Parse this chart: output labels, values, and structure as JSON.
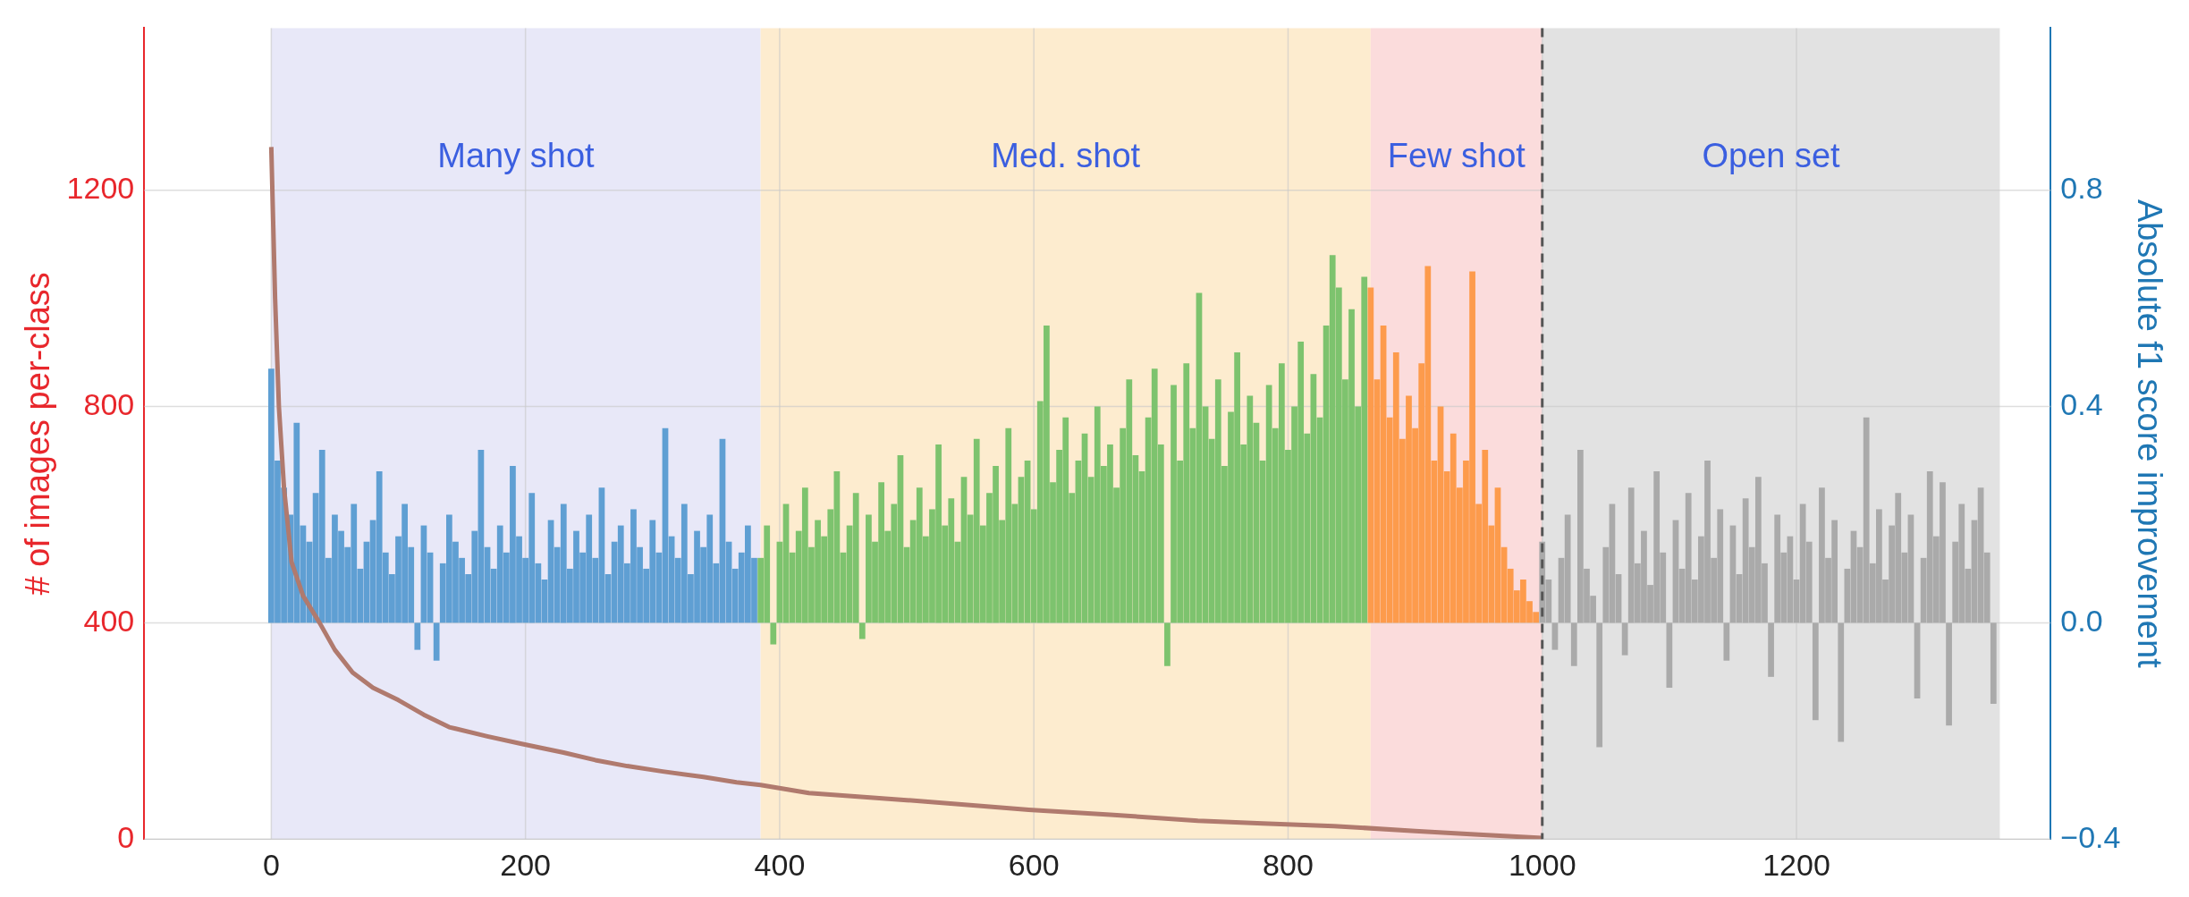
{
  "chart_data": {
    "type": "bar",
    "xlim": [
      -100,
      1400
    ],
    "xticks": [
      0,
      200,
      400,
      600,
      800,
      1000,
      1200
    ],
    "ylim": [
      0,
      1500
    ],
    "yticks": [
      0,
      400,
      800,
      1200
    ],
    "y2lim": [
      -0.4,
      1.1
    ],
    "y2ticks": [
      {
        "value": -0.4,
        "label": "−0.4"
      },
      {
        "value": 0,
        "label": "0.0"
      },
      0.4,
      0.8
    ],
    "ylabel": "# of images per-class",
    "y2label": "Absolute f1 score improvement",
    "grid": true,
    "legend": false,
    "bands": [
      {
        "axis": "x",
        "from": 0,
        "to": 385,
        "label": "Many shot",
        "color": "#e8e8f8"
      },
      {
        "axis": "x",
        "from": 385,
        "to": 865,
        "label": "Med. shot",
        "color": "#fdeccf"
      },
      {
        "axis": "x",
        "from": 865,
        "to": 1000,
        "label": "Few shot",
        "color": "#fbdcdc"
      },
      {
        "axis": "x",
        "from": 1000,
        "to": 1360,
        "label": "Open set",
        "color": "#e2e2e2"
      }
    ],
    "ref_lines": [
      {
        "axis": "x",
        "value": 1000,
        "color": "#555555",
        "line_style": "dashed"
      }
    ],
    "series": [
      {
        "axis": "y2",
        "color": "#5f9fd3",
        "x": [
          0,
          5,
          10,
          15,
          20,
          25,
          30,
          35,
          40,
          45,
          50,
          55,
          60,
          65,
          70,
          75,
          80,
          85,
          90,
          95,
          100,
          105,
          110,
          115,
          120,
          125,
          130,
          135,
          140,
          145,
          150,
          155,
          160,
          165,
          170,
          175,
          180,
          185,
          190,
          195,
          200,
          205,
          210,
          215,
          220,
          225,
          230,
          235,
          240,
          245,
          250,
          255,
          260,
          265,
          270,
          275,
          280,
          285,
          290,
          295,
          300,
          305,
          310,
          315,
          320,
          325,
          330,
          335,
          340,
          345,
          350,
          355,
          360,
          365,
          370,
          375,
          380
        ],
        "values": [
          0.47,
          0.3,
          0.25,
          0.2,
          0.37,
          0.18,
          0.15,
          0.24,
          0.32,
          0.12,
          0.2,
          0.17,
          0.14,
          0.22,
          0.1,
          0.15,
          0.19,
          0.28,
          0.13,
          0.09,
          0.16,
          0.22,
          0.14,
          -0.05,
          0.18,
          0.13,
          -0.07,
          0.11,
          0.2,
          0.15,
          0.12,
          0.09,
          0.17,
          0.32,
          0.14,
          0.1,
          0.18,
          0.13,
          0.29,
          0.16,
          0.12,
          0.24,
          0.11,
          0.08,
          0.19,
          0.14,
          0.22,
          0.1,
          0.17,
          0.13,
          0.2,
          0.12,
          0.25,
          0.09,
          0.15,
          0.18,
          0.11,
          0.21,
          0.14,
          0.1,
          0.19,
          0.13,
          0.36,
          0.16,
          0.12,
          0.22,
          0.09,
          0.17,
          0.14,
          0.2,
          0.11,
          0.34,
          0.15,
          0.1,
          0.13,
          0.18,
          0.12
        ]
      },
      {
        "axis": "y2",
        "color": "#7dc36e",
        "x": [
          385,
          390,
          395,
          400,
          405,
          410,
          415,
          420,
          425,
          430,
          435,
          440,
          445,
          450,
          455,
          460,
          465,
          470,
          475,
          480,
          485,
          490,
          495,
          500,
          505,
          510,
          515,
          520,
          525,
          530,
          535,
          540,
          545,
          550,
          555,
          560,
          565,
          570,
          575,
          580,
          585,
          590,
          595,
          600,
          605,
          610,
          615,
          620,
          625,
          630,
          635,
          640,
          645,
          650,
          655,
          660,
          665,
          670,
          675,
          680,
          685,
          690,
          695,
          700,
          705,
          710,
          715,
          720,
          725,
          730,
          735,
          740,
          745,
          750,
          755,
          760,
          765,
          770,
          775,
          780,
          785,
          790,
          795,
          800,
          805,
          810,
          815,
          820,
          825,
          830,
          835,
          840,
          845,
          850,
          855,
          860
        ],
        "values": [
          0.12,
          0.18,
          -0.04,
          0.15,
          0.22,
          0.13,
          0.17,
          0.25,
          0.14,
          0.19,
          0.16,
          0.21,
          0.28,
          0.13,
          0.18,
          0.24,
          -0.03,
          0.2,
          0.15,
          0.26,
          0.17,
          0.22,
          0.31,
          0.14,
          0.19,
          0.25,
          0.16,
          0.21,
          0.33,
          0.18,
          0.23,
          0.15,
          0.27,
          0.2,
          0.34,
          0.18,
          0.24,
          0.29,
          0.19,
          0.36,
          0.22,
          0.27,
          0.3,
          0.21,
          0.41,
          0.55,
          0.26,
          0.32,
          0.38,
          0.24,
          0.3,
          0.35,
          0.27,
          0.4,
          0.29,
          0.33,
          0.25,
          0.36,
          0.45,
          0.31,
          0.28,
          0.38,
          0.47,
          0.33,
          -0.08,
          0.44,
          0.3,
          0.48,
          0.36,
          0.61,
          0.4,
          0.34,
          0.45,
          0.29,
          0.39,
          0.5,
          0.33,
          0.42,
          0.37,
          0.3,
          0.44,
          0.36,
          0.48,
          0.32,
          0.4,
          0.52,
          0.35,
          0.46,
          0.38,
          0.55,
          0.68,
          0.62,
          0.45,
          0.58,
          0.4,
          0.64
        ]
      },
      {
        "axis": "y2",
        "color": "#fd9b4c",
        "x": [
          865,
          870,
          875,
          880,
          885,
          890,
          895,
          900,
          905,
          910,
          915,
          920,
          925,
          930,
          935,
          940,
          945,
          950,
          955,
          960,
          965,
          970,
          975,
          980,
          985,
          990,
          995
        ],
        "values": [
          0.62,
          0.45,
          0.55,
          0.38,
          0.5,
          0.34,
          0.42,
          0.36,
          0.48,
          0.66,
          0.3,
          0.4,
          0.28,
          0.35,
          0.25,
          0.3,
          0.65,
          0.22,
          0.32,
          0.18,
          0.25,
          0.14,
          0.1,
          0.06,
          0.08,
          0.04,
          0.02
        ]
      },
      {
        "axis": "y2",
        "color": "#aaaaaa",
        "x": [
          1000,
          1005,
          1010,
          1015,
          1020,
          1025,
          1030,
          1035,
          1040,
          1045,
          1050,
          1055,
          1060,
          1065,
          1070,
          1075,
          1080,
          1085,
          1090,
          1095,
          1100,
          1105,
          1110,
          1115,
          1120,
          1125,
          1130,
          1135,
          1140,
          1145,
          1150,
          1155,
          1160,
          1165,
          1170,
          1175,
          1180,
          1185,
          1190,
          1195,
          1200,
          1205,
          1210,
          1215,
          1220,
          1225,
          1230,
          1235,
          1240,
          1245,
          1250,
          1255,
          1260,
          1265,
          1270,
          1275,
          1280,
          1285,
          1290,
          1295,
          1300,
          1305,
          1310,
          1315,
          1320,
          1325,
          1330,
          1335,
          1340,
          1345,
          1350,
          1355
        ],
        "values": [
          0.15,
          0.08,
          -0.05,
          0.12,
          0.2,
          -0.08,
          0.32,
          0.1,
          0.05,
          -0.23,
          0.14,
          0.22,
          0.09,
          -0.06,
          0.25,
          0.11,
          0.17,
          0.07,
          0.28,
          0.13,
          -0.12,
          0.19,
          0.1,
          0.24,
          0.08,
          0.16,
          0.3,
          0.12,
          0.21,
          -0.07,
          0.18,
          0.09,
          0.23,
          0.14,
          0.27,
          0.11,
          -0.1,
          0.2,
          0.13,
          0.16,
          0.08,
          0.22,
          0.15,
          -0.18,
          0.25,
          0.12,
          0.19,
          -0.22,
          0.1,
          0.17,
          0.14,
          0.38,
          0.11,
          0.21,
          0.08,
          0.18,
          0.24,
          0.13,
          0.2,
          -0.14,
          0.12,
          0.28,
          0.16,
          0.26,
          -0.19,
          0.15,
          0.22,
          0.1,
          0.19,
          0.25,
          0.13,
          -0.15
        ]
      },
      {
        "type": "line",
        "axis": "y",
        "color": "#b07a6e",
        "x": [
          0,
          3,
          6,
          10,
          16,
          25,
          38,
          50,
          64,
          80,
          100,
          120,
          140,
          170,
          197,
          230,
          255,
          280,
          308,
          340,
          366,
          385,
          423,
          500,
          596,
          660,
          729,
          780,
          836,
          900,
          950,
          1000
        ],
        "values": [
          1280,
          1000,
          800,
          650,
          512,
          450,
          400,
          350,
          308,
          280,
          257,
          230,
          207,
          190,
          176,
          160,
          146,
          135,
          125,
          115,
          105,
          100,
          85,
          72,
          54,
          45,
          34,
          29,
          24,
          15,
          8,
          2
        ]
      }
    ]
  }
}
